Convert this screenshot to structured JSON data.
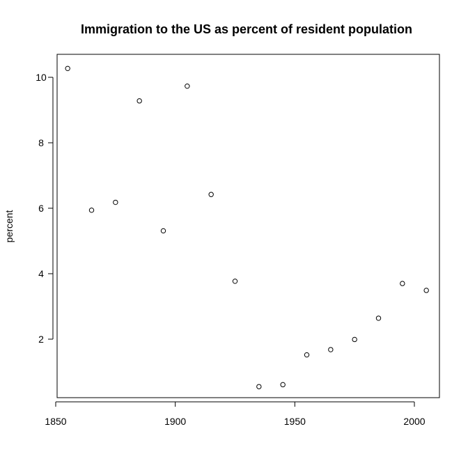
{
  "chart_data": {
    "type": "scatter",
    "title": "Immigration to the US as percent of resident population",
    "xlabel": "",
    "ylabel": "percent",
    "xlim": [
      1850,
      2010
    ],
    "ylim": [
      0.4,
      10.5
    ],
    "x_ticks": [
      1850,
      1900,
      1950,
      2000
    ],
    "y_ticks": [
      2,
      4,
      6,
      8,
      10
    ],
    "grid": false,
    "legend": "none",
    "marker": "open-circle",
    "points": [
      {
        "x": 1855,
        "y": 10.27
      },
      {
        "x": 1865,
        "y": 5.94
      },
      {
        "x": 1875,
        "y": 6.18
      },
      {
        "x": 1885,
        "y": 9.28
      },
      {
        "x": 1895,
        "y": 5.31
      },
      {
        "x": 1905,
        "y": 9.73
      },
      {
        "x": 1915,
        "y": 6.42
      },
      {
        "x": 1925,
        "y": 3.77
      },
      {
        "x": 1935,
        "y": 0.55
      },
      {
        "x": 1945,
        "y": 0.61
      },
      {
        "x": 1955,
        "y": 1.52
      },
      {
        "x": 1965,
        "y": 1.68
      },
      {
        "x": 1975,
        "y": 1.99
      },
      {
        "x": 1985,
        "y": 2.64
      },
      {
        "x": 1995,
        "y": 3.7
      },
      {
        "x": 2005,
        "y": 3.49
      }
    ]
  }
}
